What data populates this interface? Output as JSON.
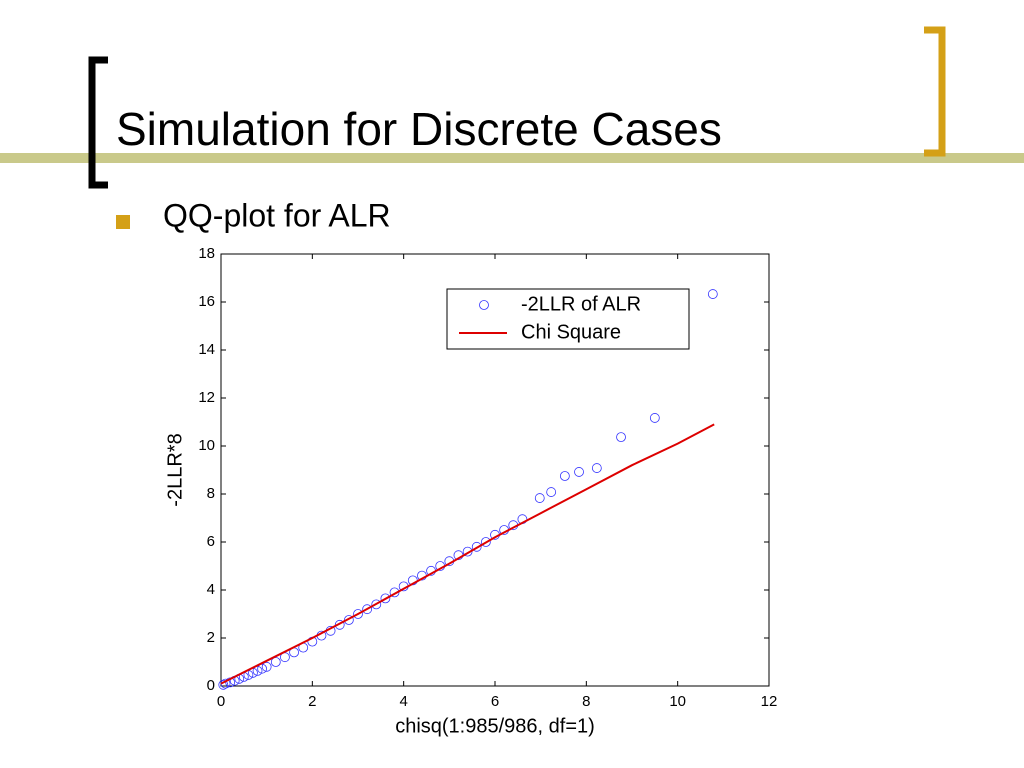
{
  "slide": {
    "title": "Simulation for Discrete Cases",
    "bullet": "QQ-plot for ALR"
  },
  "chart_data": {
    "type": "scatter",
    "xlabel": "chisq(1:985/986, df=1)",
    "ylabel": "-2LLR*8",
    "xlim": [
      0,
      12
    ],
    "xticks": [
      0,
      2,
      4,
      6,
      8,
      10,
      12
    ],
    "ylim": [
      0,
      18
    ],
    "yticks": [
      0,
      2,
      4,
      6,
      8,
      10,
      12,
      14,
      16,
      18
    ],
    "legend": "upper right",
    "series": [
      {
        "name": "-2LLR of ALR",
        "color": "#3333ff",
        "mark": "circle",
        "x": [
          0.05,
          0.1,
          0.2,
          0.3,
          0.4,
          0.5,
          0.6,
          0.7,
          0.8,
          0.9,
          1.0,
          1.2,
          1.4,
          1.6,
          1.8,
          2.0,
          2.2,
          2.4,
          2.6,
          2.8,
          3.0,
          3.2,
          3.4,
          3.6,
          3.8,
          4.0,
          4.2,
          4.4,
          4.6,
          4.8,
          5.0,
          5.2,
          5.4,
          5.6,
          5.8,
          6.0,
          6.2,
          6.4,
          6.6,
          6.98,
          7.23,
          7.53,
          7.84,
          8.23,
          8.76,
          9.5,
          10.77
        ],
        "values": [
          0.05,
          0.1,
          0.15,
          0.22,
          0.3,
          0.38,
          0.46,
          0.55,
          0.63,
          0.72,
          0.8,
          1.0,
          1.2,
          1.4,
          1.6,
          1.85,
          2.1,
          2.3,
          2.55,
          2.75,
          3.0,
          3.2,
          3.4,
          3.65,
          3.9,
          4.15,
          4.4,
          4.6,
          4.8,
          5.0,
          5.2,
          5.45,
          5.6,
          5.8,
          6.0,
          6.3,
          6.5,
          6.7,
          6.95,
          7.83,
          8.08,
          8.75,
          8.92,
          9.08,
          10.37,
          11.17,
          16.33
        ]
      },
      {
        "name": "Chi Square",
        "color": "#dd0000",
        "mark": "line",
        "x": [
          0,
          1,
          2,
          3,
          4,
          5,
          6,
          7,
          8,
          9,
          10,
          10.8
        ],
        "values": [
          0.1,
          1.05,
          2.0,
          3.0,
          4.05,
          5.1,
          6.2,
          7.2,
          8.2,
          9.2,
          10.1,
          10.9
        ]
      }
    ]
  }
}
